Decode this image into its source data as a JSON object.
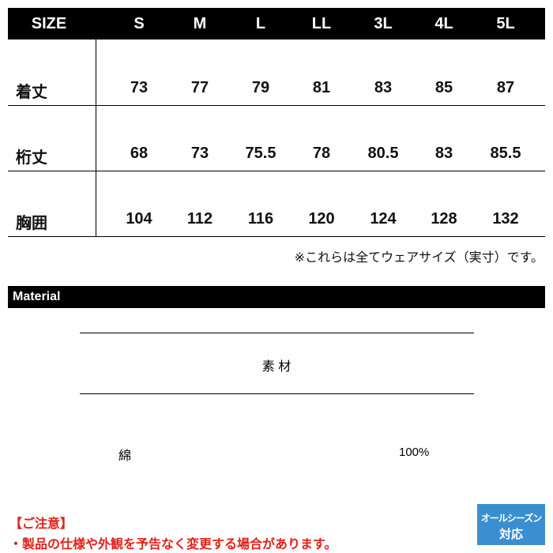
{
  "size_table": {
    "header": [
      "SIZE",
      "S",
      "M",
      "L",
      "LL",
      "3L",
      "4L",
      "5L"
    ],
    "rows": [
      {
        "label": "着丈",
        "values": [
          73,
          77,
          79,
          81,
          83,
          85,
          87
        ]
      },
      {
        "label": "桁丈",
        "values": [
          68,
          73,
          75.5,
          78,
          80.5,
          83,
          85.5
        ]
      },
      {
        "label": "胸囲",
        "values": [
          104,
          112,
          116,
          120,
          124,
          128,
          132
        ]
      }
    ],
    "note": "※これらは全てウェアサイズ（実寸）です。"
  },
  "material": {
    "title": "Material",
    "column_header": "素 材",
    "name": "綿",
    "ratio": "100%"
  },
  "caution": {
    "title": "【ご注意】",
    "text": "・製品の仕様や外観を予告なく変更する場合があります。"
  },
  "badge": {
    "line1": "オールシーズン",
    "line2": "対応"
  }
}
